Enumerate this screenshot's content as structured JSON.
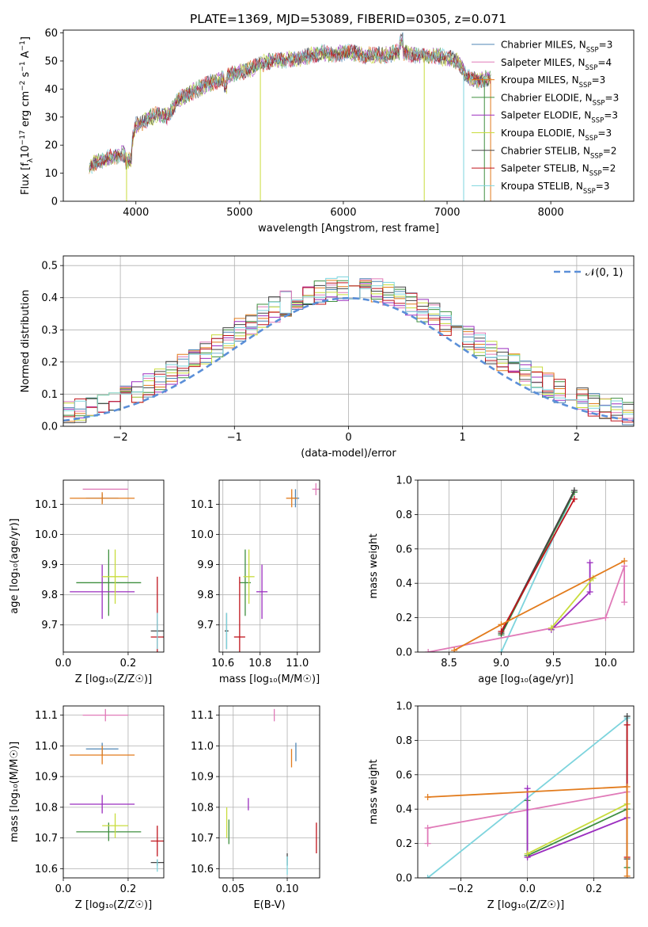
{
  "figure_title": "PLATE=1369, MJD=53089, FIBERID=0305, z=0.071",
  "colors": {
    "chabrier_miles": "#4f86b5",
    "salpeter_miles": "#e07ab8",
    "kroupa_miles": "#e27b1c",
    "chabrier_elodie": "#3f8f3f",
    "salpeter_elodie": "#9b2ebf",
    "kroupa_elodie": "#c8dc3c",
    "chabrier_stelib": "#444444",
    "salpeter_stelib": "#c0141c",
    "kroupa_stelib": "#7dd4dd",
    "normal_curve": "#5b8fd8"
  },
  "chart_data": [
    {
      "id": "spectrum",
      "type": "line",
      "title": "PLATE=1369, MJD=53089, FIBERID=0305, z=0.071",
      "xlabel": "wavelength [Angstrom, rest frame]",
      "ylabel": "Flux [f_λ 10^-17 erg cm^-2 s^-1 A^-1]",
      "xlim": [
        3300,
        8800
      ],
      "ylim": [
        0,
        61
      ],
      "xticks": [
        4000,
        5000,
        6000,
        7000,
        8000
      ],
      "yticks": [
        0,
        10,
        20,
        30,
        40,
        50,
        60
      ],
      "legend_position": "upper right",
      "legend": [
        {
          "label": "Chabrier MILES, N",
          "sub": "SSP",
          "suffix": "=3",
          "color": "#4f86b5"
        },
        {
          "label": "Salpeter MILES, N",
          "sub": "SSP",
          "suffix": "=4",
          "color": "#e07ab8"
        },
        {
          "label": "Kroupa MILES, N",
          "sub": "SSP",
          "suffix": "=3",
          "color": "#e27b1c"
        },
        {
          "label": "Chabrier ELODIE, N",
          "sub": "SSP",
          "suffix": "=3",
          "color": "#3f8f3f"
        },
        {
          "label": "Salpeter ELODIE, N",
          "sub": "SSP",
          "suffix": "=3",
          "color": "#9b2ebf"
        },
        {
          "label": "Kroupa ELODIE, N",
          "sub": "SSP",
          "suffix": "=3",
          "color": "#c8dc3c"
        },
        {
          "label": "Chabrier STELIB, N",
          "sub": "SSP",
          "suffix": "=2",
          "color": "#444444"
        },
        {
          "label": "Salpeter STELIB, N",
          "sub": "SSP",
          "suffix": "=2",
          "color": "#c0141c"
        },
        {
          "label": "Kroupa STELIB, N",
          "sub": "SSP",
          "suffix": "=3",
          "color": "#7dd4dd"
        }
      ],
      "continuum": [
        [
          3550,
          12
        ],
        [
          3620,
          14
        ],
        [
          3700,
          15
        ],
        [
          3800,
          16
        ],
        [
          3900,
          17
        ],
        [
          3950,
          19
        ],
        [
          4000,
          27
        ],
        [
          4100,
          29
        ],
        [
          4200,
          31
        ],
        [
          4300,
          30
        ],
        [
          4400,
          36
        ],
        [
          4500,
          38
        ],
        [
          4600,
          40
        ],
        [
          4700,
          42
        ],
        [
          4800,
          43
        ],
        [
          4900,
          45
        ],
        [
          5000,
          46
        ],
        [
          5100,
          47
        ],
        [
          5200,
          49
        ],
        [
          5300,
          50
        ],
        [
          5400,
          50
        ],
        [
          5500,
          51
        ],
        [
          5600,
          51
        ],
        [
          5700,
          52
        ],
        [
          5800,
          53
        ],
        [
          5900,
          52
        ],
        [
          6000,
          53
        ],
        [
          6100,
          53
        ],
        [
          6200,
          52
        ],
        [
          6300,
          52
        ],
        [
          6400,
          52
        ],
        [
          6500,
          53
        ],
        [
          6600,
          53
        ],
        [
          6700,
          52
        ],
        [
          6800,
          52
        ],
        [
          6900,
          52
        ],
        [
          7000,
          51
        ],
        [
          7100,
          50
        ],
        [
          7200,
          44
        ],
        [
          7300,
          43
        ],
        [
          7400,
          44
        ]
      ],
      "dropouts": [
        {
          "x": 3910,
          "color": "#c8dc3c"
        },
        {
          "x": 5200,
          "color": "#c8dc3c"
        },
        {
          "x": 6780,
          "color": "#c8dc3c"
        },
        {
          "x": 7160,
          "color": "#7dd4dd"
        },
        {
          "x": 7360,
          "color": "#3f8f3f"
        },
        {
          "x": 7420,
          "color": "#e27b1c"
        }
      ]
    },
    {
      "id": "residuals",
      "type": "step",
      "xlabel": "(data-model)/error",
      "ylabel": "Normed distribution",
      "xlim": [
        -2.5,
        2.5
      ],
      "ylim": [
        0,
        0.53
      ],
      "xticks": [
        -2,
        -1,
        0,
        1,
        2
      ],
      "xticklabels": [
        "−2",
        "−1",
        "0",
        "1",
        "2"
      ],
      "yticks": [
        0,
        0.1,
        0.2,
        0.3,
        0.4,
        0.5
      ],
      "yticklabels": [
        "0.0",
        "0.1",
        "0.2",
        "0.3",
        "0.4",
        "0.5"
      ],
      "bin_width": 0.1,
      "legend": {
        "label": "𝒩(0, 1)",
        "style": "dashed",
        "color": "#5b8fd8"
      },
      "base_hist": [
        0.025,
        0.03,
        0.03,
        0.04,
        0.045,
        0.05,
        0.06,
        0.065,
        0.07,
        0.08,
        0.09,
        0.1,
        0.11,
        0.125,
        0.14,
        0.155,
        0.17,
        0.19,
        0.21,
        0.23,
        0.25,
        0.27,
        0.29,
        0.31,
        0.33,
        0.35,
        0.36,
        0.375,
        0.39,
        0.4,
        0.41,
        0.42,
        0.43,
        0.44,
        0.445,
        0.45,
        0.45,
        0.445,
        0.44,
        0.43,
        0.42,
        0.41,
        0.4,
        0.39,
        0.375,
        0.36,
        0.35,
        0.33,
        0.31,
        0.29,
        0.27,
        0.25,
        0.23,
        0.21,
        0.19,
        0.17,
        0.155,
        0.14,
        0.125,
        0.11,
        0.1,
        0.09,
        0.08,
        0.07,
        0.065,
        0.06,
        0.05,
        0.045,
        0.04,
        0.035,
        0.03,
        0.03,
        0.025,
        0.02,
        0.02,
        0.015,
        0.012,
        0.01,
        0.01,
        0.01
      ]
    },
    {
      "id": "age_vs_Z",
      "type": "errorbar",
      "xlabel": "Z [log₁₀(Z/Z☉)]",
      "ylabel": "age  [log₁₀(age/yr)]",
      "xlim": [
        0,
        0.31
      ],
      "ylim": [
        9.61,
        10.18
      ],
      "xticks": [
        0,
        0.2
      ],
      "xticklabels": [
        "0.0",
        "0.2"
      ],
      "yticks": [
        9.7,
        9.8,
        9.9,
        10.0,
        10.1
      ],
      "yticklabels": [
        "9.7",
        "9.8",
        "9.9",
        "10.0",
        "10.1"
      ],
      "points": [
        {
          "x": 0.12,
          "y": 10.12,
          "xerr": 0.05,
          "yerr": 0.015,
          "color": "#4f86b5"
        },
        {
          "x": 0.13,
          "y": 10.15,
          "xerr": 0.07,
          "yerr": 0.0,
          "color": "#e07ab8"
        },
        {
          "x": 0.12,
          "y": 10.12,
          "xerr": 0.1,
          "yerr": 0.02,
          "color": "#e27b1c"
        },
        {
          "x": 0.14,
          "y": 9.84,
          "xerr": 0.1,
          "yerr": 0.11,
          "color": "#3f8f3f"
        },
        {
          "x": 0.12,
          "y": 9.81,
          "xerr": 0.1,
          "yerr": 0.09,
          "color": "#9b2ebf"
        },
        {
          "x": 0.16,
          "y": 9.86,
          "xerr": 0.04,
          "yerr": 0.09,
          "color": "#c8dc3c"
        },
        {
          "x": 0.29,
          "y": 9.68,
          "xerr": 0.02,
          "yerr": 0.0,
          "color": "#444444"
        },
        {
          "x": 0.29,
          "y": 9.66,
          "xerr": 0.02,
          "yerr": 0.2,
          "color": "#c0141c"
        },
        {
          "x": 0.29,
          "y": 9.68,
          "xerr": 0.0,
          "yerr": 0.06,
          "color": "#7dd4dd"
        }
      ]
    },
    {
      "id": "age_vs_mass",
      "type": "errorbar",
      "xlabel": "mass [log₁₀(M/M☉)]",
      "ylabel": "",
      "xlim": [
        10.58,
        11.12
      ],
      "ylim": [
        9.61,
        10.18
      ],
      "xticks": [
        10.6,
        10.8,
        11.0
      ],
      "xticklabels": [
        "10.6",
        "10.8",
        "11.0"
      ],
      "yticks": [
        9.7,
        9.8,
        9.9,
        10.0,
        10.1
      ],
      "yticklabels": [
        "9.7",
        "9.8",
        "9.9",
        "10.0",
        "10.1"
      ],
      "points": [
        {
          "x": 10.99,
          "y": 10.12,
          "xerr": 0.02,
          "yerr": 0.03,
          "color": "#4f86b5"
        },
        {
          "x": 11.1,
          "y": 10.15,
          "xerr": 0.02,
          "yerr": 0.02,
          "color": "#e07ab8"
        },
        {
          "x": 10.97,
          "y": 10.12,
          "xerr": 0.03,
          "yerr": 0.03,
          "color": "#e27b1c"
        },
        {
          "x": 10.72,
          "y": 9.84,
          "xerr": 0.03,
          "yerr": 0.11,
          "color": "#3f8f3f"
        },
        {
          "x": 10.81,
          "y": 9.81,
          "xerr": 0.03,
          "yerr": 0.09,
          "color": "#9b2ebf"
        },
        {
          "x": 10.74,
          "y": 9.86,
          "xerr": 0.03,
          "yerr": 0.09,
          "color": "#c8dc3c"
        },
        {
          "x": 10.62,
          "y": 9.68,
          "xerr": 0.01,
          "yerr": 0.06,
          "color": "#444444"
        },
        {
          "x": 10.69,
          "y": 9.66,
          "xerr": 0.03,
          "yerr": 0.2,
          "color": "#c0141c"
        },
        {
          "x": 10.62,
          "y": 9.68,
          "xerr": 0.0,
          "yerr": 0.06,
          "color": "#7dd4dd"
        }
      ]
    },
    {
      "id": "mass_weight_vs_age",
      "type": "line",
      "xlabel": "age  [log₁₀(age/yr)]",
      "ylabel": "mass weight",
      "xlim": [
        8.2,
        10.27
      ],
      "ylim": [
        0,
        1.0
      ],
      "xticks": [
        8.5,
        9.0,
        9.5,
        10.0
      ],
      "xticklabels": [
        "8.5",
        "9.0",
        "9.5",
        "10.0"
      ],
      "yticks": [
        0,
        0.2,
        0.4,
        0.6,
        0.8,
        1.0
      ],
      "yticklabels": [
        "0.0",
        "0.2",
        "0.4",
        "0.6",
        "0.8",
        "1.0"
      ],
      "series": [
        {
          "color": "#7dd4dd",
          "x": [
            9.0,
            9.7
          ],
          "y": [
            0.0,
            0.93
          ]
        },
        {
          "color": "#3f8f3f",
          "x": [
            9.0,
            9.7
          ],
          "y": [
            0.1,
            0.93
          ]
        },
        {
          "color": "#444444",
          "x": [
            9.0,
            9.7
          ],
          "y": [
            0.11,
            0.94
          ]
        },
        {
          "color": "#c0141c",
          "x": [
            9.0,
            9.7
          ],
          "y": [
            0.12,
            0.89
          ]
        },
        {
          "color": "#e07ab8",
          "x": [
            8.3,
            10.0,
            10.18,
            10.18
          ],
          "y": [
            0.0,
            0.2,
            0.5,
            0.29
          ]
        },
        {
          "color": "#9b2ebf",
          "x": [
            9.48,
            9.85,
            9.85
          ],
          "y": [
            0.13,
            0.35,
            0.52
          ]
        },
        {
          "color": "#c8dc3c",
          "x": [
            9.48,
            9.88
          ],
          "y": [
            0.14,
            0.43
          ]
        },
        {
          "color": "#e27b1c",
          "x": [
            8.55,
            9.0,
            10.18
          ],
          "y": [
            0.01,
            0.16,
            0.53
          ]
        }
      ]
    },
    {
      "id": "mass_vs_Z",
      "type": "errorbar",
      "xlabel": "Z [log₁₀(Z/Z☉)]",
      "ylabel": "mass [log₁₀(M/M☉)]",
      "xlim": [
        0,
        0.31
      ],
      "ylim": [
        10.57,
        11.13
      ],
      "xticks": [
        0,
        0.2
      ],
      "xticklabels": [
        "0.0",
        "0.2"
      ],
      "yticks": [
        10.6,
        10.7,
        10.8,
        10.9,
        11.0,
        11.1
      ],
      "yticklabels": [
        "10.6",
        "10.7",
        "10.8",
        "10.9",
        "11.0",
        "11.1"
      ],
      "points": [
        {
          "x": 0.12,
          "y": 10.99,
          "xerr": 0.05,
          "yerr": 0.02,
          "color": "#4f86b5"
        },
        {
          "x": 0.13,
          "y": 11.1,
          "xerr": 0.07,
          "yerr": 0.02,
          "color": "#e07ab8"
        },
        {
          "x": 0.12,
          "y": 10.97,
          "xerr": 0.1,
          "yerr": 0.03,
          "color": "#e27b1c"
        },
        {
          "x": 0.14,
          "y": 10.72,
          "xerr": 0.1,
          "yerr": 0.03,
          "color": "#3f8f3f"
        },
        {
          "x": 0.12,
          "y": 10.81,
          "xerr": 0.1,
          "yerr": 0.03,
          "color": "#9b2ebf"
        },
        {
          "x": 0.16,
          "y": 10.74,
          "xerr": 0.04,
          "yerr": 0.04,
          "color": "#c8dc3c"
        },
        {
          "x": 0.29,
          "y": 10.62,
          "xerr": 0.02,
          "yerr": 0.01,
          "color": "#444444"
        },
        {
          "x": 0.29,
          "y": 10.69,
          "xerr": 0.02,
          "yerr": 0.05,
          "color": "#c0141c"
        },
        {
          "x": 0.29,
          "y": 10.61,
          "xerr": 0.0,
          "yerr": 0.02,
          "color": "#7dd4dd"
        }
      ]
    },
    {
      "id": "mass_vs_ebv",
      "type": "errorbar",
      "xlabel": "E(B-V)",
      "ylabel": "",
      "xlim": [
        0.037,
        0.13
      ],
      "ylim": [
        10.57,
        11.13
      ],
      "xticks": [
        0.05,
        0.1
      ],
      "xticklabels": [
        "0.05",
        "0.10"
      ],
      "yticks": [
        10.6,
        10.7,
        10.8,
        10.9,
        11.0,
        11.1
      ],
      "yticklabels": [
        "10.6",
        "10.7",
        "10.8",
        "10.9",
        "11.0",
        "11.1"
      ],
      "points": [
        {
          "x": 0.108,
          "y": 10.98,
          "xerr": 0.0,
          "yerr": 0.03,
          "color": "#4f86b5"
        },
        {
          "x": 0.088,
          "y": 11.1,
          "xerr": 0.0,
          "yerr": 0.02,
          "color": "#e07ab8"
        },
        {
          "x": 0.104,
          "y": 10.96,
          "xerr": 0.0,
          "yerr": 0.03,
          "color": "#e27b1c"
        },
        {
          "x": 0.046,
          "y": 10.72,
          "xerr": 0.0,
          "yerr": 0.04,
          "color": "#3f8f3f"
        },
        {
          "x": 0.064,
          "y": 10.81,
          "xerr": 0.0,
          "yerr": 0.02,
          "color": "#9b2ebf"
        },
        {
          "x": 0.044,
          "y": 10.75,
          "xerr": 0.0,
          "yerr": 0.05,
          "color": "#c8dc3c"
        },
        {
          "x": 0.1,
          "y": 10.63,
          "xerr": 0.0,
          "yerr": 0.02,
          "color": "#444444"
        },
        {
          "x": 0.127,
          "y": 10.7,
          "xerr": 0.0,
          "yerr": 0.05,
          "color": "#c0141c"
        },
        {
          "x": 0.1,
          "y": 10.61,
          "xerr": 0.0,
          "yerr": 0.03,
          "color": "#7dd4dd"
        }
      ]
    },
    {
      "id": "mass_weight_vs_Z",
      "type": "line",
      "xlabel": "Z [log₁₀(Z/Z☉)]",
      "ylabel": "mass weight",
      "xlim": [
        -0.33,
        0.32
      ],
      "ylim": [
        0,
        1.0
      ],
      "xticks": [
        -0.2,
        0.0,
        0.2
      ],
      "xticklabels": [
        "−0.2",
        "0.0",
        "0.2"
      ],
      "yticks": [
        0,
        0.2,
        0.4,
        0.6,
        0.8,
        1.0
      ],
      "yticklabels": [
        "0.0",
        "0.2",
        "0.4",
        "0.6",
        "0.8",
        "1.0"
      ],
      "series": [
        {
          "color": "#7dd4dd",
          "x": [
            -0.3,
            0.3,
            0.3
          ],
          "y": [
            0.0,
            0.93,
            0.06
          ]
        },
        {
          "color": "#3f8f3f",
          "x": [
            0.0,
            0.0,
            0.3,
            0.3
          ],
          "y": [
            0.45,
            0.13,
            0.4,
            0.06
          ]
        },
        {
          "color": "#444444",
          "x": [
            0.3,
            0.3
          ],
          "y": [
            0.94,
            0.11
          ]
        },
        {
          "color": "#c0141c",
          "x": [
            0.3,
            0.3
          ],
          "y": [
            0.89,
            0.12
          ]
        },
        {
          "color": "#e07ab8",
          "x": [
            -0.3,
            -0.3,
            0.3
          ],
          "y": [
            0.2,
            0.29,
            0.5
          ]
        },
        {
          "color": "#9b2ebf",
          "x": [
            0.0,
            0.0,
            0.3
          ],
          "y": [
            0.52,
            0.12,
            0.35
          ]
        },
        {
          "color": "#c8dc3c",
          "x": [
            0.0,
            0.3
          ],
          "y": [
            0.14,
            0.43
          ]
        },
        {
          "color": "#e27b1c",
          "x": [
            -0.3,
            0.3,
            0.3
          ],
          "y": [
            0.47,
            0.53,
            0.01
          ]
        }
      ]
    }
  ]
}
